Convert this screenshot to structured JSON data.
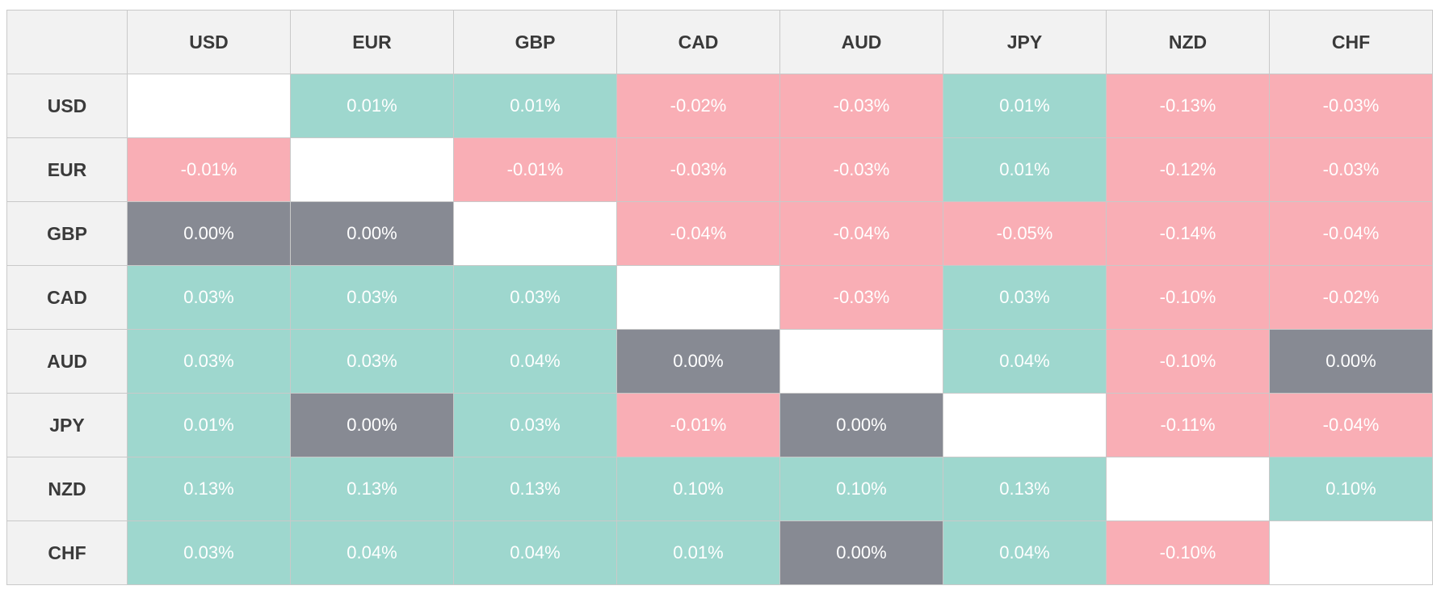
{
  "table": {
    "columns": [
      "USD",
      "EUR",
      "GBP",
      "CAD",
      "AUD",
      "JPY",
      "NZD",
      "CHF"
    ],
    "colors": {
      "positive": "#9ed7ce",
      "negative": "#f9aeb5",
      "zero": "#878a93",
      "empty": "#ffffff"
    },
    "rows": [
      {
        "label": "USD",
        "cells": [
          null,
          "0.01%",
          "0.01%",
          "-0.02%",
          "-0.03%",
          "0.01%",
          "-0.13%",
          "-0.03%"
        ]
      },
      {
        "label": "EUR",
        "cells": [
          "-0.01%",
          null,
          "-0.01%",
          "-0.03%",
          "-0.03%",
          "0.01%",
          "-0.12%",
          "-0.03%"
        ]
      },
      {
        "label": "GBP",
        "cells": [
          "0.00%",
          "0.00%",
          null,
          "-0.04%",
          "-0.04%",
          "-0.05%",
          "-0.14%",
          "-0.04%"
        ]
      },
      {
        "label": "CAD",
        "cells": [
          "0.03%",
          "0.03%",
          "0.03%",
          null,
          "-0.03%",
          "0.03%",
          "-0.10%",
          "-0.02%"
        ]
      },
      {
        "label": "AUD",
        "cells": [
          "0.03%",
          "0.03%",
          "0.04%",
          "0.00%",
          null,
          "0.04%",
          "-0.10%",
          "0.00%"
        ]
      },
      {
        "label": "JPY",
        "cells": [
          "0.01%",
          "0.00%",
          "0.03%",
          "-0.01%",
          "0.00%",
          null,
          "-0.11%",
          "-0.04%"
        ]
      },
      {
        "label": "NZD",
        "cells": [
          "0.13%",
          "0.13%",
          "0.13%",
          "0.10%",
          "0.10%",
          "0.13%",
          null,
          "0.10%"
        ]
      },
      {
        "label": "CHF",
        "cells": [
          "0.03%",
          "0.04%",
          "0.04%",
          "0.01%",
          "0.00%",
          "0.04%",
          "-0.10%",
          null
        ]
      }
    ]
  }
}
